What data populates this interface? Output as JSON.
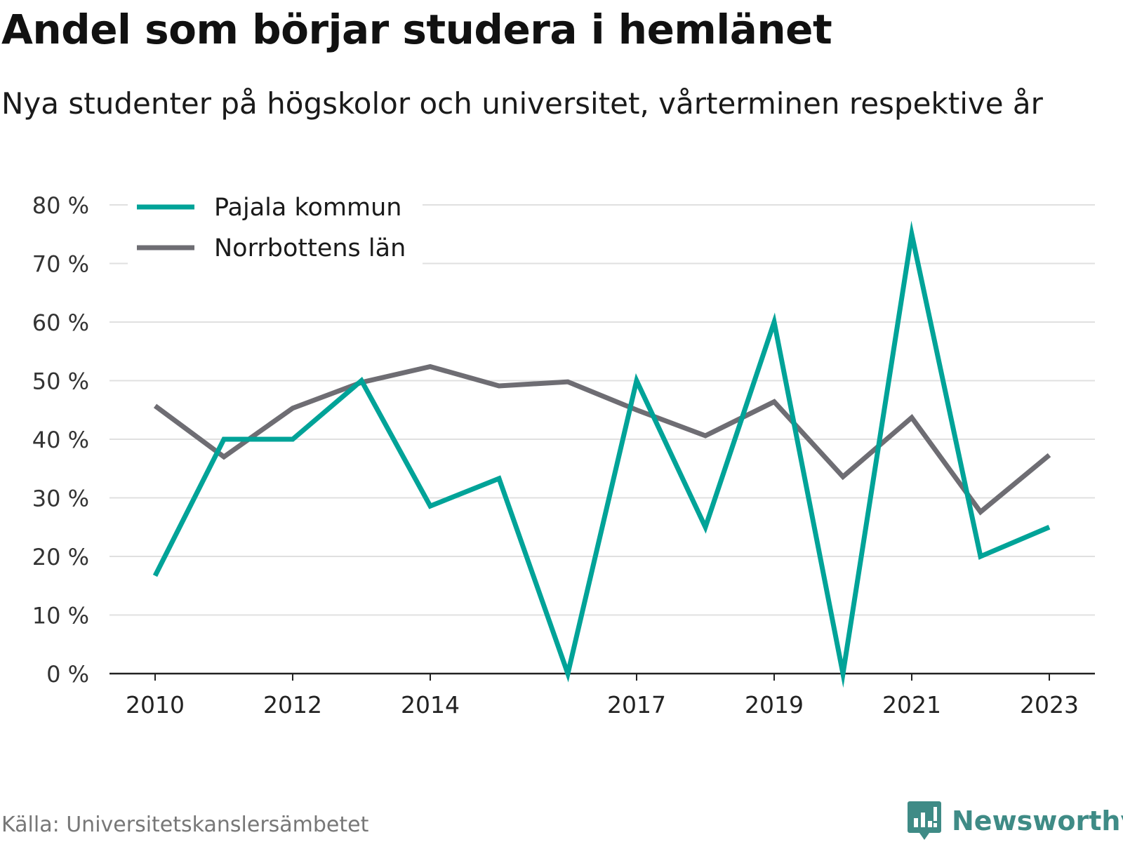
{
  "title": "Andel som börjar studera i hemlänet",
  "subtitle": "Nya studenter på högskolor och universitet, vårterminen respektive år",
  "source": "Källa: Universitetskanslersämbetet",
  "brand": "Newsworthy",
  "colors": {
    "pajala": "#00a398",
    "norrbotten": "#6e6d73",
    "grid": "#e0e0e0",
    "brand": "#3f8b86"
  },
  "chart_data": {
    "type": "line",
    "x": [
      2010,
      2011,
      2012,
      2013,
      2014,
      2015,
      2016,
      2017,
      2018,
      2019,
      2020,
      2021,
      2022,
      2023
    ],
    "x_tick_labels": [
      "2010",
      "2012",
      "2014",
      "2017",
      "2019",
      "2021",
      "2023"
    ],
    "y_tick_labels": [
      "0 %",
      "10 %",
      "20 %",
      "30 %",
      "40 %",
      "50 %",
      "60 %",
      "70 %",
      "80 %"
    ],
    "ylim": [
      0,
      80
    ],
    "grid": true,
    "legend_position": "top-left",
    "series": [
      {
        "name": "Pajala kommun",
        "values": [
          16.7,
          40,
          40,
          50,
          28.6,
          33.3,
          0,
          50,
          25,
          60,
          0,
          75,
          20,
          25
        ]
      },
      {
        "name": "Norrbottens län",
        "values": [
          45.7,
          37,
          45.3,
          49.7,
          52.4,
          49.1,
          49.8,
          45,
          40.6,
          46.4,
          33.6,
          43.7,
          27.6,
          37.3
        ]
      }
    ]
  }
}
